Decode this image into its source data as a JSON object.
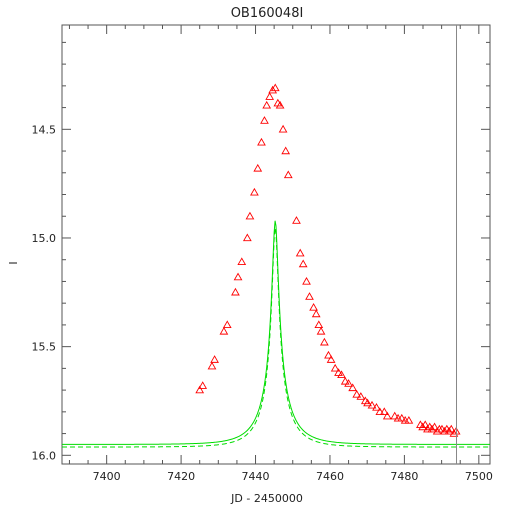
{
  "chart_data": {
    "type": "scatter",
    "title": "OB160048I",
    "xlabel": "JD - 2450000",
    "ylabel": "I",
    "xlim": [
      7388,
      7503
    ],
    "ylim": [
      16.04,
      14.02
    ],
    "y_inverted": true,
    "grid": false,
    "legend": "none",
    "x_ticks": [
      7400,
      7420,
      7440,
      7460,
      7480,
      7500
    ],
    "y_ticks": [
      14.5,
      15.0,
      15.5,
      16.0
    ],
    "y_tick_labels": [
      "14.5",
      "15.0",
      "15.5",
      "16.0"
    ],
    "vertical_marker_x": 7494,
    "model": {
      "t0": 7445.3,
      "tE": 8.0,
      "u0": 0.092,
      "I_base": 15.95,
      "fs": 0.16
    },
    "series": [
      {
        "marker": "triangle",
        "color": "#ff0000",
        "points": [
          [
            7425.0,
            15.7
          ],
          [
            7425.8,
            15.68
          ],
          [
            7428.3,
            15.59
          ],
          [
            7429.0,
            15.56
          ],
          [
            7431.5,
            15.43
          ],
          [
            7432.4,
            15.4
          ],
          [
            7434.6,
            15.25
          ],
          [
            7435.3,
            15.18
          ],
          [
            7436.3,
            15.11
          ],
          [
            7437.8,
            15.0
          ],
          [
            7438.5,
            14.9
          ],
          [
            7439.7,
            14.79
          ],
          [
            7440.6,
            14.68
          ],
          [
            7441.6,
            14.56
          ],
          [
            7442.4,
            14.46
          ],
          [
            7443.0,
            14.39
          ],
          [
            7443.8,
            14.35
          ],
          [
            7444.6,
            14.32
          ],
          [
            7445.3,
            14.31
          ],
          [
            7446.0,
            14.38
          ],
          [
            7446.6,
            14.39
          ],
          [
            7447.4,
            14.5
          ],
          [
            7448.1,
            14.6
          ],
          [
            7448.8,
            14.71
          ],
          [
            7451.0,
            14.92
          ],
          [
            7452.0,
            15.07
          ],
          [
            7452.8,
            15.12
          ],
          [
            7453.7,
            15.2
          ],
          [
            7454.5,
            15.27
          ],
          [
            7455.6,
            15.32
          ],
          [
            7456.3,
            15.35
          ],
          [
            7457.0,
            15.4
          ],
          [
            7457.6,
            15.43
          ],
          [
            7458.5,
            15.48
          ],
          [
            7459.6,
            15.54
          ],
          [
            7460.3,
            15.56
          ],
          [
            7461.4,
            15.6
          ],
          [
            7462.3,
            15.62
          ],
          [
            7463.1,
            15.63
          ],
          [
            7464.1,
            15.66
          ],
          [
            7465.0,
            15.67
          ],
          [
            7466.1,
            15.69
          ],
          [
            7467.2,
            15.72
          ],
          [
            7468.3,
            15.73
          ],
          [
            7469.5,
            15.75
          ],
          [
            7470.1,
            15.76
          ],
          [
            7471.3,
            15.77
          ],
          [
            7472.5,
            15.78
          ],
          [
            7473.4,
            15.8
          ],
          [
            7474.6,
            15.8
          ],
          [
            7475.4,
            15.82
          ],
          [
            7477.4,
            15.82
          ],
          [
            7478.3,
            15.83
          ],
          [
            7479.3,
            15.83
          ],
          [
            7480.2,
            15.84
          ],
          [
            7481.2,
            15.84
          ],
          [
            7484.3,
            15.86
          ],
          [
            7484.9,
            15.87
          ],
          [
            7485.6,
            15.86
          ],
          [
            7486.2,
            15.88
          ],
          [
            7486.8,
            15.87
          ],
          [
            7487.4,
            15.88
          ],
          [
            7488.1,
            15.87
          ],
          [
            7488.8,
            15.89
          ],
          [
            7489.4,
            15.88
          ],
          [
            7490.1,
            15.88
          ],
          [
            7490.8,
            15.89
          ],
          [
            7491.4,
            15.88
          ],
          [
            7492.0,
            15.89
          ],
          [
            7492.6,
            15.88
          ],
          [
            7493.3,
            15.9
          ],
          [
            7493.9,
            15.89
          ]
        ]
      }
    ],
    "model_curve_color": "#00dd00"
  }
}
